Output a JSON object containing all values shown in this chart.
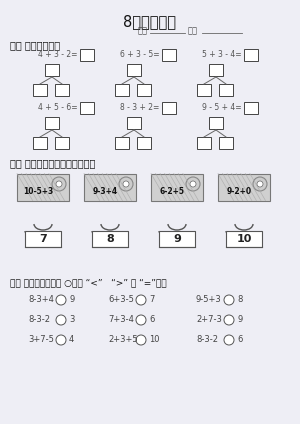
{
  "title": "8、加减混合",
  "subtitle_left": "年级",
  "subtitle_right": "姓名",
  "section1_title": "一、 观察填得快。",
  "section2_title": "二、 我能打开锁。（连一连。）",
  "section3_title": "三、 魔力圆圈。（在 ○里填 “<”   “>” 或 “=”。）",
  "row1_problems": [
    "4 + 3 - 2=",
    "6 + 3 - 5=",
    "5 + 3 - 4="
  ],
  "row2_problems": [
    "4 + 5 - 6=",
    "8 - 3 + 2=",
    "9 - 5 + 4="
  ],
  "locks": [
    "10-5+3",
    "9-3+4",
    "6-2+5",
    "9-2+0"
  ],
  "buckets": [
    "7",
    "8",
    "9",
    "10"
  ],
  "compare_problems": [
    [
      "8-3+4",
      "9"
    ],
    [
      "6+3-5",
      "7"
    ],
    [
      "9-5+3",
      "8"
    ],
    [
      "8-3-2",
      "3"
    ],
    [
      "7+3-4",
      "6"
    ],
    [
      "2+7-3",
      "9"
    ],
    [
      "3+7-5",
      "4"
    ],
    [
      "2+3+5",
      "10"
    ],
    [
      "8-3-2",
      "6"
    ]
  ],
  "bg_color": "#eeeef5",
  "text_color": "#333333"
}
